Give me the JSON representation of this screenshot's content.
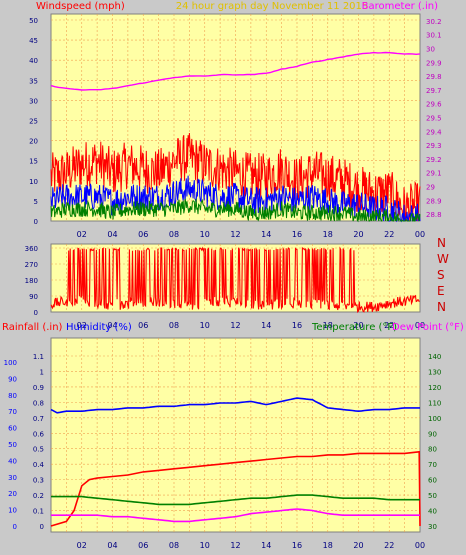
{
  "colors": {
    "plot_bg": "#ffffa5",
    "grid": "#f0a050",
    "page_bg": "#c9c9c9",
    "red": "#ff0000",
    "blue": "#0000ff",
    "green": "#008000",
    "magenta": "#ff00ff",
    "yellow": "#e0c000",
    "dark_green": "#006400",
    "axis_text": "#000080"
  },
  "header": {
    "title_left": "Windspeed (mph)",
    "title_center": "24 hour graph day   November 11 2015",
    "title_right": "Barometer (.in)"
  },
  "x_ticks": [
    "02",
    "04",
    "06",
    "08",
    "10",
    "12",
    "14",
    "16",
    "18",
    "20",
    "22",
    "00"
  ],
  "chart_data": [
    {
      "type": "line",
      "name": "wind-baro",
      "title": "",
      "xlabel": "",
      "ylabel": "Windspeed (mph)",
      "y2label": "Barometer (.in)",
      "x_range_hours": [
        0,
        24
      ],
      "x_ticks": [
        "02",
        "04",
        "06",
        "08",
        "10",
        "12",
        "14",
        "16",
        "18",
        "20",
        "22",
        "00"
      ],
      "ylim": [
        0,
        50
      ],
      "y_ticks": [
        0,
        5,
        10,
        15,
        20,
        25,
        30,
        35,
        40,
        45,
        50
      ],
      "y2lim": [
        28.75,
        30.25
      ],
      "y2_ticks": [
        "28.8",
        "28.9",
        "29",
        "29.1",
        "29.2",
        "29.3",
        "29.4",
        "29.5",
        "29.6",
        "29.7",
        "29.8",
        "29.9",
        "30",
        "30.1",
        "30.2"
      ],
      "series": [
        {
          "name": "Barometer",
          "axis": "right",
          "color": "#ff00ff",
          "x": [
            0,
            1,
            2,
            3,
            4,
            5,
            6,
            7,
            8,
            9,
            10,
            11,
            12,
            13,
            14,
            15,
            16,
            17,
            18,
            19,
            20,
            21,
            22,
            23,
            24
          ],
          "y": [
            29.73,
            29.71,
            29.7,
            29.7,
            29.71,
            29.73,
            29.75,
            29.77,
            29.79,
            29.8,
            29.8,
            29.81,
            29.81,
            29.81,
            29.82,
            29.85,
            29.87,
            29.9,
            29.92,
            29.94,
            29.96,
            29.97,
            29.97,
            29.96,
            29.96
          ]
        },
        {
          "name": "Wind Gust",
          "axis": "left",
          "color": "#ff0000",
          "x": [
            0,
            1,
            2,
            3,
            4,
            5,
            6,
            7,
            8,
            9,
            10,
            11,
            12,
            13,
            14,
            15,
            16,
            17,
            18,
            19,
            20,
            21,
            22,
            23,
            24
          ],
          "y": [
            11,
            12,
            14,
            15,
            12,
            14,
            13,
            12,
            15,
            16,
            14,
            13,
            12,
            11,
            11,
            13,
            10,
            12,
            11,
            10,
            8,
            7,
            7,
            3,
            4
          ]
        },
        {
          "name": "Wind Speed",
          "axis": "left",
          "color": "#0000ff",
          "x": [
            0,
            1,
            2,
            3,
            4,
            5,
            6,
            7,
            8,
            9,
            10,
            11,
            12,
            13,
            14,
            15,
            16,
            17,
            18,
            19,
            20,
            21,
            22,
            23,
            24
          ],
          "y": [
            5,
            6,
            6,
            6,
            5,
            6,
            6,
            6,
            7,
            8,
            7,
            6,
            6,
            5,
            5,
            6,
            5,
            6,
            5,
            4,
            4,
            3,
            3,
            1,
            1
          ]
        },
        {
          "name": "Wind Avg",
          "axis": "left",
          "color": "#008000",
          "x": [
            0,
            1,
            2,
            3,
            4,
            5,
            6,
            7,
            8,
            9,
            10,
            11,
            12,
            13,
            14,
            15,
            16,
            17,
            18,
            19,
            20,
            21,
            22,
            23,
            24
          ],
          "y": [
            2,
            3,
            3,
            3,
            2,
            3,
            3,
            3,
            3,
            4,
            3,
            3,
            3,
            2,
            2,
            3,
            2,
            2,
            2,
            2,
            1,
            1,
            1,
            0,
            0
          ]
        }
      ]
    },
    {
      "type": "line",
      "name": "wind-direction",
      "title": "",
      "ylabel": "",
      "x_range_hours": [
        0,
        24
      ],
      "ylim": [
        0,
        360
      ],
      "y_ticks": [
        0,
        90,
        180,
        270,
        360
      ],
      "right_labels": [
        "N",
        "W",
        "S",
        "E",
        "N"
      ],
      "series": [
        {
          "name": "Wind Direction",
          "color": "#ff0000",
          "x": [
            0,
            1,
            2,
            3,
            4,
            5,
            6,
            7,
            8,
            9,
            10,
            11,
            12,
            13,
            14,
            15,
            16,
            17,
            18,
            19,
            20,
            21,
            22,
            23,
            24
          ],
          "y": [
            45,
            60,
            70,
            50,
            40,
            45,
            55,
            60,
            50,
            40,
            45,
            60,
            55,
            45,
            40,
            45,
            50,
            45,
            40,
            35,
            30,
            30,
            50,
            60,
            70
          ]
        }
      ]
    },
    {
      "type": "line",
      "name": "rain-humidity-temp",
      "title": "",
      "x_range_hours": [
        0,
        24
      ],
      "ylabel": "Rainfall (.in)",
      "ylabel2": "Humidity (%)",
      "y2label": "Temperature (°F)",
      "y2label2": "Dew Point (°F)",
      "ylim": [
        0,
        1.15
      ],
      "y_ticks": [
        "0",
        "0.1",
        "0.2",
        "0.3",
        "0.4",
        "0.5",
        "0.6",
        "0.7",
        "0.8",
        "0.9",
        "1",
        "1.1"
      ],
      "humidity_ticks": [
        "0",
        "10",
        "20",
        "30",
        "40",
        "50",
        "60",
        "70",
        "80",
        "90",
        "100"
      ],
      "y2lim": [
        27.5,
        142.5
      ],
      "y2_ticks": [
        "30",
        "40",
        "50",
        "60",
        "70",
        "80",
        "90",
        "100",
        "110",
        "120",
        "130",
        "140"
      ],
      "series": [
        {
          "name": "Humidity",
          "axis": "humidity",
          "color": "#0000ff",
          "x": [
            0,
            0.4,
            1,
            2,
            3,
            4,
            5,
            6,
            7,
            8,
            9,
            10,
            11,
            12,
            13,
            14,
            15,
            16,
            17,
            18,
            19,
            20,
            21,
            22,
            23,
            24
          ],
          "y": [
            71,
            69,
            70,
            70,
            71,
            71,
            72,
            72,
            73,
            73,
            74,
            74,
            75,
            75,
            76,
            74,
            76,
            78,
            77,
            72,
            71,
            70,
            71,
            71,
            72,
            72
          ]
        },
        {
          "name": "Rainfall",
          "axis": "left",
          "color": "#ff0000",
          "x": [
            0,
            1,
            1.5,
            2,
            2.5,
            3,
            4,
            5,
            6,
            7,
            8,
            9,
            10,
            11,
            12,
            13,
            14,
            15,
            16,
            17,
            18,
            19,
            20,
            21,
            22,
            23,
            23.95,
            24
          ],
          "y": [
            0,
            0.03,
            0.1,
            0.26,
            0.3,
            0.31,
            0.32,
            0.33,
            0.35,
            0.36,
            0.37,
            0.38,
            0.39,
            0.4,
            0.41,
            0.42,
            0.43,
            0.44,
            0.45,
            0.45,
            0.46,
            0.46,
            0.47,
            0.47,
            0.47,
            0.47,
            0.48,
            0
          ]
        },
        {
          "name": "Temperature",
          "axis": "right",
          "color": "#008000",
          "x": [
            0,
            1,
            2,
            3,
            4,
            5,
            6,
            7,
            8,
            9,
            10,
            11,
            12,
            13,
            14,
            15,
            16,
            17,
            18,
            19,
            20,
            21,
            22,
            23,
            24
          ],
          "y": [
            49,
            49,
            49,
            48,
            47,
            46,
            45,
            44,
            44,
            44,
            45,
            46,
            47,
            48,
            48,
            49,
            50,
            50,
            49,
            48,
            48,
            48,
            47,
            47,
            47
          ]
        },
        {
          "name": "Dew Point",
          "axis": "right",
          "color": "#ff00ff",
          "x": [
            0,
            1,
            2,
            3,
            4,
            5,
            6,
            7,
            8,
            9,
            10,
            11,
            12,
            13,
            14,
            15,
            16,
            17,
            18,
            19,
            20,
            21,
            22,
            23,
            24
          ],
          "y": [
            37,
            37,
            37,
            37,
            36,
            36,
            35,
            34,
            33,
            33,
            34,
            35,
            36,
            38,
            39,
            40,
            41,
            40,
            38,
            37,
            37,
            37,
            37,
            37,
            37
          ]
        }
      ]
    }
  ]
}
